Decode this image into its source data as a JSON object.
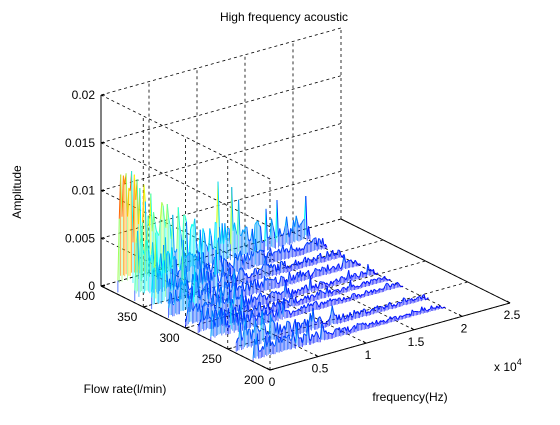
{
  "chart_data": {
    "type": "line",
    "subtype": "3d-waterfall",
    "title": "High frequency acoustic",
    "xlabel": "frequency(Hz)",
    "ylabel": "Flow rate(l/min)",
    "zlabel": "Amplitude",
    "x_multiplier_label": "x 10",
    "x_multiplier_exponent": "4",
    "xlim": [
      0,
      25000
    ],
    "ylim": [
      200,
      400
    ],
    "zlim": [
      0,
      0.02
    ],
    "xticks": [
      0,
      5000,
      10000,
      15000,
      20000,
      25000
    ],
    "xtick_labels": [
      "0",
      "0.5",
      "1",
      "1.5",
      "2",
      "2.5"
    ],
    "yticks": [
      200,
      250,
      300,
      350,
      400
    ],
    "ytick_labels": [
      "200",
      "250",
      "300",
      "350",
      "400"
    ],
    "zticks": [
      0,
      0.005,
      0.01,
      0.015,
      0.02
    ],
    "ztick_labels": [
      "0",
      "0.005",
      "0.01",
      "0.015",
      "0.02"
    ],
    "grid": true,
    "colormap": "jet",
    "colormap_colors": [
      "#00008f",
      "#0000ff",
      "#0080ff",
      "#00ffff",
      "#80ff80",
      "#ffff00",
      "#ff8000",
      "#ff0000",
      "#800000"
    ],
    "series": [
      {
        "y": 220,
        "x_range": [
          0,
          20000
        ],
        "peak_amplitude": 0.003
      },
      {
        "y": 240,
        "x_range": [
          0,
          20000
        ],
        "peak_amplitude": 0.004
      },
      {
        "y": 270,
        "x_range": [
          0,
          20000
        ],
        "peak_amplitude": 0.0035
      },
      {
        "y": 285,
        "x_range": [
          0,
          20000
        ],
        "peak_amplitude": 0.0035
      },
      {
        "y": 300,
        "x_range": [
          0,
          20000
        ],
        "peak_amplitude": 0.004
      },
      {
        "y": 320,
        "x_range": [
          0,
          20000
        ],
        "peak_amplitude": 0.005
      },
      {
        "y": 340,
        "x_range": [
          0,
          20000
        ],
        "peak_amplitude": 0.006
      },
      {
        "y": 360,
        "x_range": [
          0,
          20000
        ],
        "peak_amplitude": 0.008
      },
      {
        "y": 380,
        "x_range": [
          0,
          20000
        ],
        "peak_amplitude": 0.016
      }
    ]
  }
}
